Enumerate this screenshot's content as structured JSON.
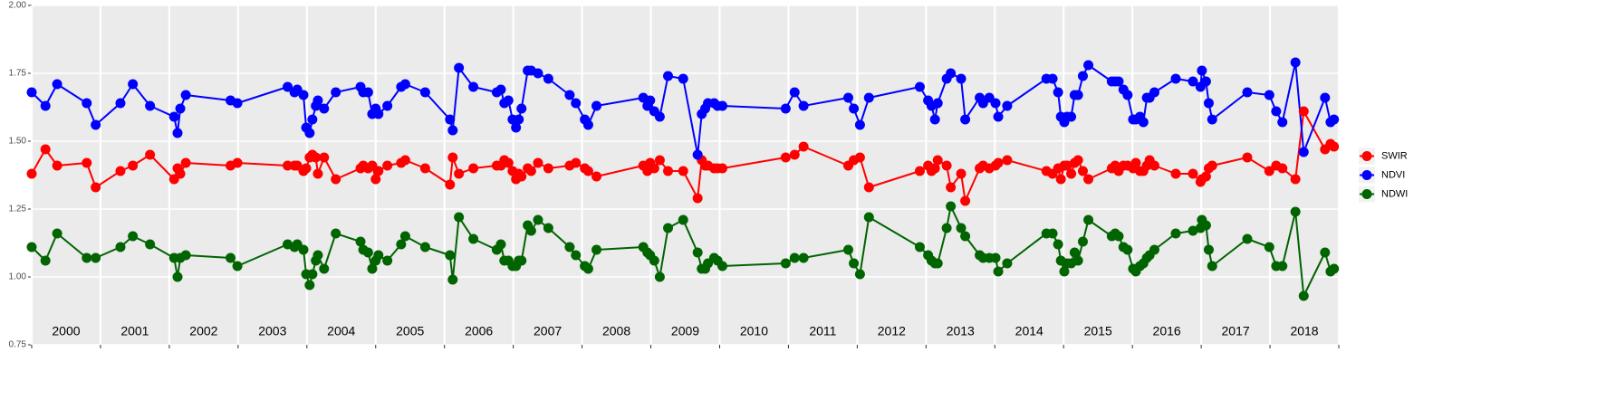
{
  "chart_data": {
    "type": "line",
    "x": [
      2000,
      2000.2,
      2000.37,
      2000.8,
      2000.93,
      2001.29,
      2001.47,
      2001.72,
      2002.07,
      2002.12,
      2002.16,
      2002.24,
      2002.89,
      2002.99,
      2003.72,
      2003.82,
      2003.86,
      2003.95,
      2003.99,
      2004.04,
      2004.08,
      2004.13,
      2004.16,
      2004.25,
      2004.42,
      2004.78,
      2004.82,
      2004.89,
      2004.95,
      2005,
      2005.04,
      2005.17,
      2005.37,
      2005.43,
      2005.72,
      2006.08,
      2006.12,
      2006.21,
      2006.42,
      2006.76,
      2006.82,
      2006.87,
      2006.93,
      2006.99,
      2007.04,
      2007.08,
      2007.12,
      2007.21,
      2007.26,
      2007.36,
      2007.51,
      2007.82,
      2007.91,
      2008.04,
      2008.09,
      2008.21,
      2008.89,
      2008.95,
      2008.99,
      2009.05,
      2009.13,
      2009.25,
      2009.47,
      2009.68,
      2009.74,
      2009.79,
      2009.83,
      2009.92,
      2009.97,
      2010.04,
      2010.96,
      2011.09,
      2011.22,
      2011.87,
      2011.95,
      2012.04,
      2012.17,
      2012.91,
      2013.03,
      2013.08,
      2013.13,
      2013.17,
      2013.3,
      2013.36,
      2013.51,
      2013.57,
      2013.78,
      2013.83,
      2013.92,
      2014.01,
      2014.05,
      2014.18,
      2014.75,
      2014.84,
      2014.92,
      2014.96,
      2015.01,
      2015.05,
      2015.11,
      2015.16,
      2015.21,
      2015.28,
      2015.36,
      2015.7,
      2015.75,
      2015.8,
      2015.87,
      2015.93,
      2016.01,
      2016.05,
      2016.11,
      2016.16,
      2016.21,
      2016.25,
      2016.32,
      2016.63,
      2016.88,
      2016.99,
      2017.01,
      2017.07,
      2017.11,
      2017.16,
      2017.67,
      2017.99,
      2018.09,
      2018.18,
      2018.37,
      2018.49,
      2018.8,
      2018.88,
      2018.93
    ],
    "series": [
      {
        "name": "SWIR",
        "color": "#ff0000",
        "values": [
          1.38,
          1.47,
          1.41,
          1.42,
          1.33,
          1.39,
          1.41,
          1.45,
          1.36,
          1.4,
          1.38,
          1.42,
          1.41,
          1.42,
          1.41,
          1.41,
          1.41,
          1.39,
          1.4,
          1.44,
          1.45,
          1.44,
          1.38,
          1.44,
          1.36,
          1.4,
          1.41,
          1.4,
          1.41,
          1.36,
          1.39,
          1.41,
          1.42,
          1.43,
          1.4,
          1.34,
          1.44,
          1.38,
          1.4,
          1.41,
          1.41,
          1.43,
          1.42,
          1.39,
          1.36,
          1.38,
          1.37,
          1.4,
          1.39,
          1.42,
          1.4,
          1.41,
          1.42,
          1.4,
          1.39,
          1.37,
          1.41,
          1.39,
          1.42,
          1.4,
          1.43,
          1.39,
          1.39,
          1.29,
          1.43,
          1.41,
          1.41,
          1.4,
          1.4,
          1.4,
          1.44,
          1.45,
          1.48,
          1.41,
          1.43,
          1.44,
          1.33,
          1.39,
          1.41,
          1.39,
          1.4,
          1.43,
          1.41,
          1.33,
          1.38,
          1.28,
          1.4,
          1.41,
          1.4,
          1.41,
          1.42,
          1.43,
          1.39,
          1.38,
          1.4,
          1.36,
          1.41,
          1.41,
          1.38,
          1.42,
          1.43,
          1.39,
          1.36,
          1.4,
          1.41,
          1.39,
          1.41,
          1.41,
          1.4,
          1.42,
          1.39,
          1.39,
          1.41,
          1.43,
          1.41,
          1.38,
          1.38,
          1.35,
          1.36,
          1.37,
          1.4,
          1.41,
          1.44,
          1.39,
          1.41,
          1.4,
          1.36,
          1.61,
          1.47,
          1.49,
          1.48
        ]
      },
      {
        "name": "NDVI",
        "color": "#0000ff",
        "values": [
          1.68,
          1.63,
          1.71,
          1.64,
          1.56,
          1.64,
          1.71,
          1.63,
          1.59,
          1.53,
          1.62,
          1.67,
          1.65,
          1.64,
          1.7,
          1.68,
          1.69,
          1.67,
          1.55,
          1.53,
          1.58,
          1.63,
          1.65,
          1.62,
          1.68,
          1.7,
          1.68,
          1.68,
          1.6,
          1.62,
          1.6,
          1.63,
          1.7,
          1.71,
          1.68,
          1.58,
          1.54,
          1.77,
          1.7,
          1.68,
          1.69,
          1.64,
          1.65,
          1.58,
          1.55,
          1.58,
          1.62,
          1.76,
          1.76,
          1.75,
          1.73,
          1.67,
          1.64,
          1.58,
          1.56,
          1.63,
          1.66,
          1.63,
          1.65,
          1.61,
          1.59,
          1.74,
          1.73,
          1.45,
          1.6,
          1.62,
          1.64,
          1.64,
          1.63,
          1.63,
          1.62,
          1.68,
          1.63,
          1.66,
          1.62,
          1.56,
          1.66,
          1.7,
          1.65,
          1.63,
          1.58,
          1.64,
          1.73,
          1.75,
          1.73,
          1.58,
          1.66,
          1.64,
          1.66,
          1.64,
          1.59,
          1.63,
          1.73,
          1.73,
          1.68,
          1.59,
          1.57,
          1.59,
          1.59,
          1.67,
          1.67,
          1.74,
          1.78,
          1.72,
          1.72,
          1.72,
          1.69,
          1.67,
          1.58,
          1.58,
          1.59,
          1.57,
          1.66,
          1.66,
          1.68,
          1.73,
          1.72,
          1.7,
          1.76,
          1.72,
          1.64,
          1.58,
          1.68,
          1.67,
          1.61,
          1.57,
          1.79,
          1.46,
          1.66,
          1.57,
          1.58
        ]
      },
      {
        "name": "NDWI",
        "color": "#006400",
        "values": [
          1.11,
          1.06,
          1.16,
          1.07,
          1.07,
          1.11,
          1.15,
          1.12,
          1.07,
          1.0,
          1.07,
          1.08,
          1.07,
          1.04,
          1.12,
          1.11,
          1.12,
          1.1,
          1.01,
          0.97,
          1.01,
          1.06,
          1.08,
          1.03,
          1.16,
          1.13,
          1.1,
          1.09,
          1.03,
          1.06,
          1.08,
          1.06,
          1.12,
          1.15,
          1.11,
          1.08,
          0.99,
          1.22,
          1.14,
          1.1,
          1.12,
          1.06,
          1.06,
          1.04,
          1.04,
          1.06,
          1.06,
          1.19,
          1.17,
          1.21,
          1.18,
          1.11,
          1.08,
          1.04,
          1.03,
          1.1,
          1.11,
          1.09,
          1.08,
          1.06,
          1.0,
          1.18,
          1.21,
          1.09,
          1.03,
          1.03,
          1.05,
          1.07,
          1.06,
          1.04,
          1.05,
          1.07,
          1.07,
          1.1,
          1.05,
          1.01,
          1.22,
          1.11,
          1.08,
          1.06,
          1.05,
          1.05,
          1.18,
          1.26,
          1.18,
          1.15,
          1.08,
          1.07,
          1.07,
          1.07,
          1.02,
          1.05,
          1.16,
          1.16,
          1.12,
          1.06,
          1.02,
          1.05,
          1.05,
          1.09,
          1.06,
          1.13,
          1.21,
          1.15,
          1.16,
          1.15,
          1.11,
          1.1,
          1.03,
          1.02,
          1.04,
          1.05,
          1.07,
          1.08,
          1.1,
          1.16,
          1.17,
          1.18,
          1.21,
          1.19,
          1.1,
          1.04,
          1.14,
          1.11,
          1.04,
          1.04,
          1.24,
          0.93,
          1.09,
          1.02,
          1.03
        ]
      }
    ],
    "xlim": [
      2000,
      2019
    ],
    "xticks": [
      2000,
      2001,
      2002,
      2003,
      2004,
      2005,
      2006,
      2007,
      2008,
      2009,
      2010,
      2011,
      2012,
      2013,
      2014,
      2015,
      2016,
      2017,
      2018,
      2019
    ],
    "year_labels": [
      {
        "value": 2000.5,
        "label": "2000"
      },
      {
        "value": 2001.5,
        "label": "2001"
      },
      {
        "value": 2002.5,
        "label": "2002"
      },
      {
        "value": 2003.5,
        "label": "2003"
      },
      {
        "value": 2004.5,
        "label": "2004"
      },
      {
        "value": 2005.5,
        "label": "2005"
      },
      {
        "value": 2006.5,
        "label": "2006"
      },
      {
        "value": 2007.5,
        "label": "2007"
      },
      {
        "value": 2008.5,
        "label": "2008"
      },
      {
        "value": 2009.5,
        "label": "2009"
      },
      {
        "value": 2010.5,
        "label": "2010"
      },
      {
        "value": 2011.5,
        "label": "2011"
      },
      {
        "value": 2012.5,
        "label": "2012"
      },
      {
        "value": 2013.5,
        "label": "2013"
      },
      {
        "value": 2014.5,
        "label": "2014"
      },
      {
        "value": 2015.5,
        "label": "2015"
      },
      {
        "value": 2016.5,
        "label": "2016"
      },
      {
        "value": 2017.5,
        "label": "2017"
      },
      {
        "value": 2018.5,
        "label": "2018"
      }
    ],
    "ylim": [
      0.75,
      2
    ],
    "yticks": [
      0.75,
      {
        "value": 1,
        "label": "1.00"
      },
      1.25,
      {
        "value": 1.5,
        "label": "1.50"
      },
      1.75,
      {
        "value": 2,
        "label": "2.00"
      }
    ],
    "grid": true,
    "legend": "right"
  }
}
